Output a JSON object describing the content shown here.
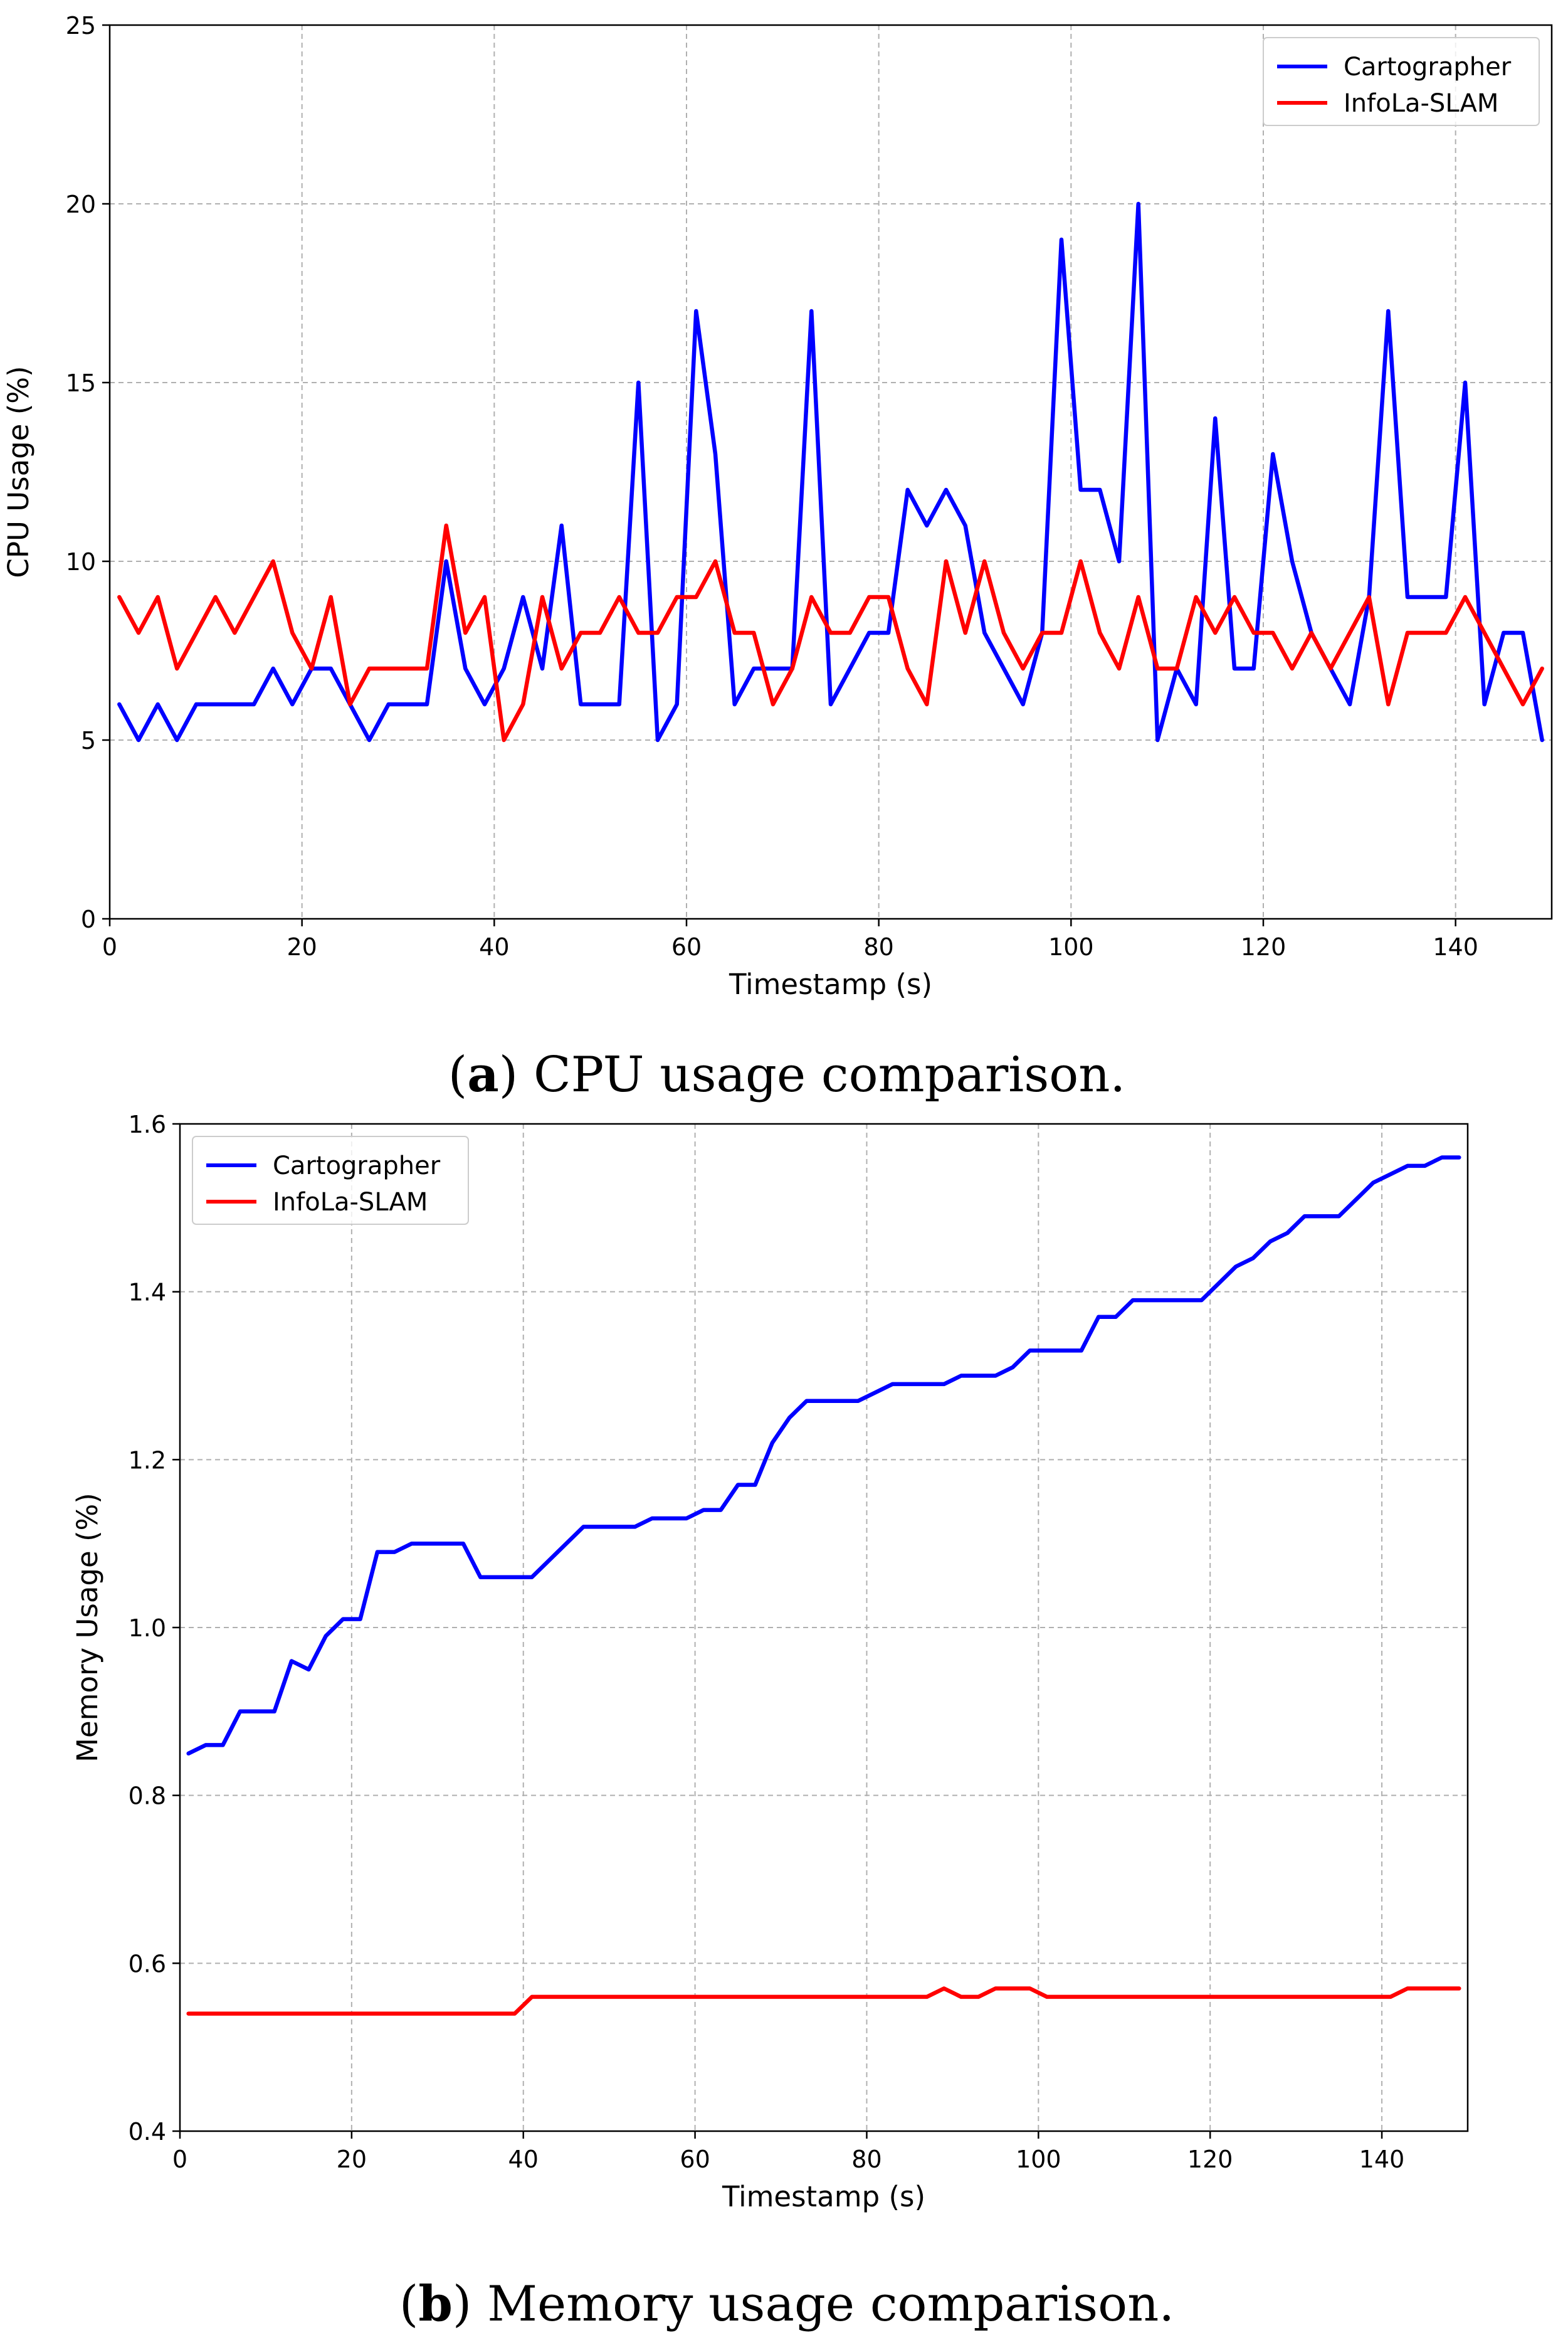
{
  "colors": {
    "cartographer": "#0000ff",
    "infola": "#ff0000",
    "grid": "#b0b0b0"
  },
  "chart_data": [
    {
      "type": "line",
      "caption": {
        "label": "a",
        "text": ") CPU usage comparison.",
        "open": "("
      },
      "xlabel": "Timestamp (s)",
      "ylabel": "CPU Usage (%)",
      "xlim": [
        0,
        150
      ],
      "ylim": [
        0,
        25
      ],
      "xticks": [
        0,
        20,
        40,
        60,
        80,
        100,
        120,
        140
      ],
      "yticks": [
        0,
        5,
        10,
        15,
        20,
        25
      ],
      "ytick_labels": [
        "0",
        "5",
        "10",
        "15",
        "20",
        "25"
      ],
      "grid": true,
      "legend_position": "top-right",
      "series": [
        {
          "name": "Cartographer",
          "color": "#0000ff",
          "x": [
            1,
            3,
            5,
            7,
            9,
            11,
            13,
            15,
            17,
            19,
            21,
            23,
            25,
            27,
            29,
            31,
            33,
            35,
            37,
            39,
            41,
            43,
            45,
            47,
            49,
            51,
            53,
            55,
            57,
            59,
            61,
            63,
            65,
            67,
            69,
            71,
            73,
            75,
            77,
            79,
            81,
            83,
            85,
            87,
            89,
            91,
            93,
            95,
            97,
            99,
            101,
            103,
            105,
            107,
            109,
            111,
            113,
            115,
            117,
            119,
            121,
            123,
            125,
            127,
            129,
            131,
            133,
            135,
            137,
            139,
            141,
            143,
            145,
            147,
            149
          ],
          "values": [
            6,
            5,
            6,
            5,
            6,
            6,
            6,
            6,
            7,
            6,
            7,
            7,
            6,
            5,
            6,
            6,
            6,
            10,
            7,
            6,
            7,
            9,
            7,
            11,
            6,
            6,
            6,
            15,
            5,
            6,
            17,
            13,
            6,
            7,
            7,
            7,
            17,
            6,
            7,
            8,
            8,
            12,
            11,
            12,
            11,
            8,
            7,
            6,
            8,
            19,
            12,
            12,
            10,
            20,
            5,
            7,
            6,
            14,
            7,
            7,
            13,
            10,
            8,
            7,
            6,
            9,
            17,
            9,
            9,
            9,
            15,
            6,
            8,
            8,
            5
          ]
        },
        {
          "name": "InfoLa-SLAM",
          "color": "#ff0000",
          "x": [
            1,
            3,
            5,
            7,
            9,
            11,
            13,
            15,
            17,
            19,
            21,
            23,
            25,
            27,
            29,
            31,
            33,
            35,
            37,
            39,
            41,
            43,
            45,
            47,
            49,
            51,
            53,
            55,
            57,
            59,
            61,
            63,
            65,
            67,
            69,
            71,
            73,
            75,
            77,
            79,
            81,
            83,
            85,
            87,
            89,
            91,
            93,
            95,
            97,
            99,
            101,
            103,
            105,
            107,
            109,
            111,
            113,
            115,
            117,
            119,
            121,
            123,
            125,
            127,
            129,
            131,
            133,
            135,
            137,
            139,
            141,
            143,
            145,
            147,
            149
          ],
          "values": [
            9,
            8,
            9,
            7,
            8,
            9,
            8,
            9,
            10,
            8,
            7,
            9,
            6,
            7,
            7,
            7,
            7,
            11,
            8,
            9,
            5,
            6,
            9,
            7,
            8,
            8,
            9,
            8,
            8,
            9,
            9,
            10,
            8,
            8,
            6,
            7,
            9,
            8,
            8,
            9,
            9,
            7,
            6,
            10,
            8,
            10,
            8,
            7,
            8,
            8,
            10,
            8,
            7,
            9,
            7,
            7,
            9,
            8,
            9,
            8,
            8,
            7,
            8,
            7,
            8,
            9,
            6,
            8,
            8,
            8,
            9,
            8,
            7,
            6,
            7
          ]
        }
      ]
    },
    {
      "type": "line",
      "caption": {
        "label": "b",
        "text": ") Memory usage comparison.",
        "open": "("
      },
      "xlabel": "Timestamp (s)",
      "ylabel": "Memory Usage (%)",
      "xlim": [
        0,
        150
      ],
      "ylim": [
        0.4,
        1.6
      ],
      "xticks": [
        0,
        20,
        40,
        60,
        80,
        100,
        120,
        140
      ],
      "yticks": [
        0.4,
        0.6,
        0.8,
        1.0,
        1.2,
        1.4,
        1.6
      ],
      "ytick_labels": [
        "0.4",
        "0.6",
        "0.8",
        "1.0",
        "1.2",
        "1.4",
        "1.6"
      ],
      "grid": true,
      "legend_position": "top-left",
      "series": [
        {
          "name": "Cartographer",
          "color": "#0000ff",
          "x": [
            1,
            3,
            5,
            7,
            9,
            11,
            13,
            15,
            17,
            19,
            21,
            23,
            25,
            27,
            29,
            31,
            33,
            35,
            37,
            39,
            41,
            43,
            45,
            47,
            49,
            51,
            53,
            55,
            57,
            59,
            61,
            63,
            65,
            67,
            69,
            71,
            73,
            75,
            77,
            79,
            81,
            83,
            85,
            87,
            89,
            91,
            93,
            95,
            97,
            99,
            101,
            103,
            105,
            107,
            109,
            111,
            113,
            115,
            117,
            119,
            121,
            123,
            125,
            127,
            129,
            131,
            133,
            135,
            137,
            139,
            141,
            143,
            145,
            147,
            149
          ],
          "values": [
            0.85,
            0.86,
            0.86,
            0.9,
            0.9,
            0.9,
            0.96,
            0.95,
            0.99,
            1.01,
            1.01,
            1.09,
            1.09,
            1.1,
            1.1,
            1.1,
            1.1,
            1.06,
            1.06,
            1.06,
            1.06,
            1.08,
            1.1,
            1.12,
            1.12,
            1.12,
            1.12,
            1.13,
            1.13,
            1.13,
            1.14,
            1.14,
            1.17,
            1.17,
            1.22,
            1.25,
            1.27,
            1.27,
            1.27,
            1.27,
            1.28,
            1.29,
            1.29,
            1.29,
            1.29,
            1.3,
            1.3,
            1.3,
            1.31,
            1.33,
            1.33,
            1.33,
            1.33,
            1.37,
            1.37,
            1.39,
            1.39,
            1.39,
            1.39,
            1.39,
            1.41,
            1.43,
            1.44,
            1.46,
            1.47,
            1.49,
            1.49,
            1.49,
            1.51,
            1.53,
            1.54,
            1.55,
            1.55,
            1.56,
            1.56
          ]
        },
        {
          "name": "InfoLa-SLAM",
          "color": "#ff0000",
          "x": [
            1,
            39,
            41,
            87,
            89,
            91,
            93,
            95,
            97,
            99,
            101,
            141,
            143,
            149
          ],
          "values": [
            0.54,
            0.54,
            0.56,
            0.56,
            0.57,
            0.56,
            0.56,
            0.57,
            0.57,
            0.57,
            0.56,
            0.56,
            0.57,
            0.57
          ]
        }
      ]
    }
  ]
}
